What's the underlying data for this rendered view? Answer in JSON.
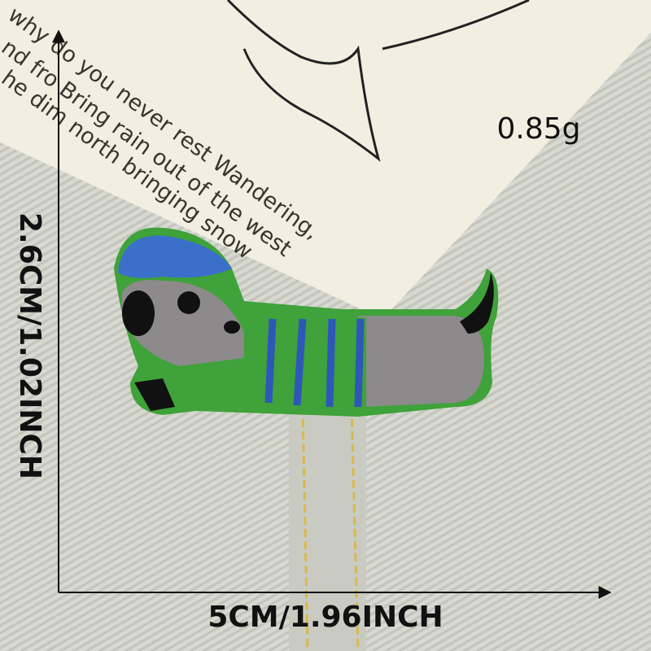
{
  "weight": "0.85g",
  "height_label": "2.6CM/1.02INCH",
  "width_label": "5CM/1.96INCH",
  "card_text": [
    "why do you never rest Wandering,",
    "nd fro  Bring rain out of the west",
    "he dim north bringing snow"
  ]
}
